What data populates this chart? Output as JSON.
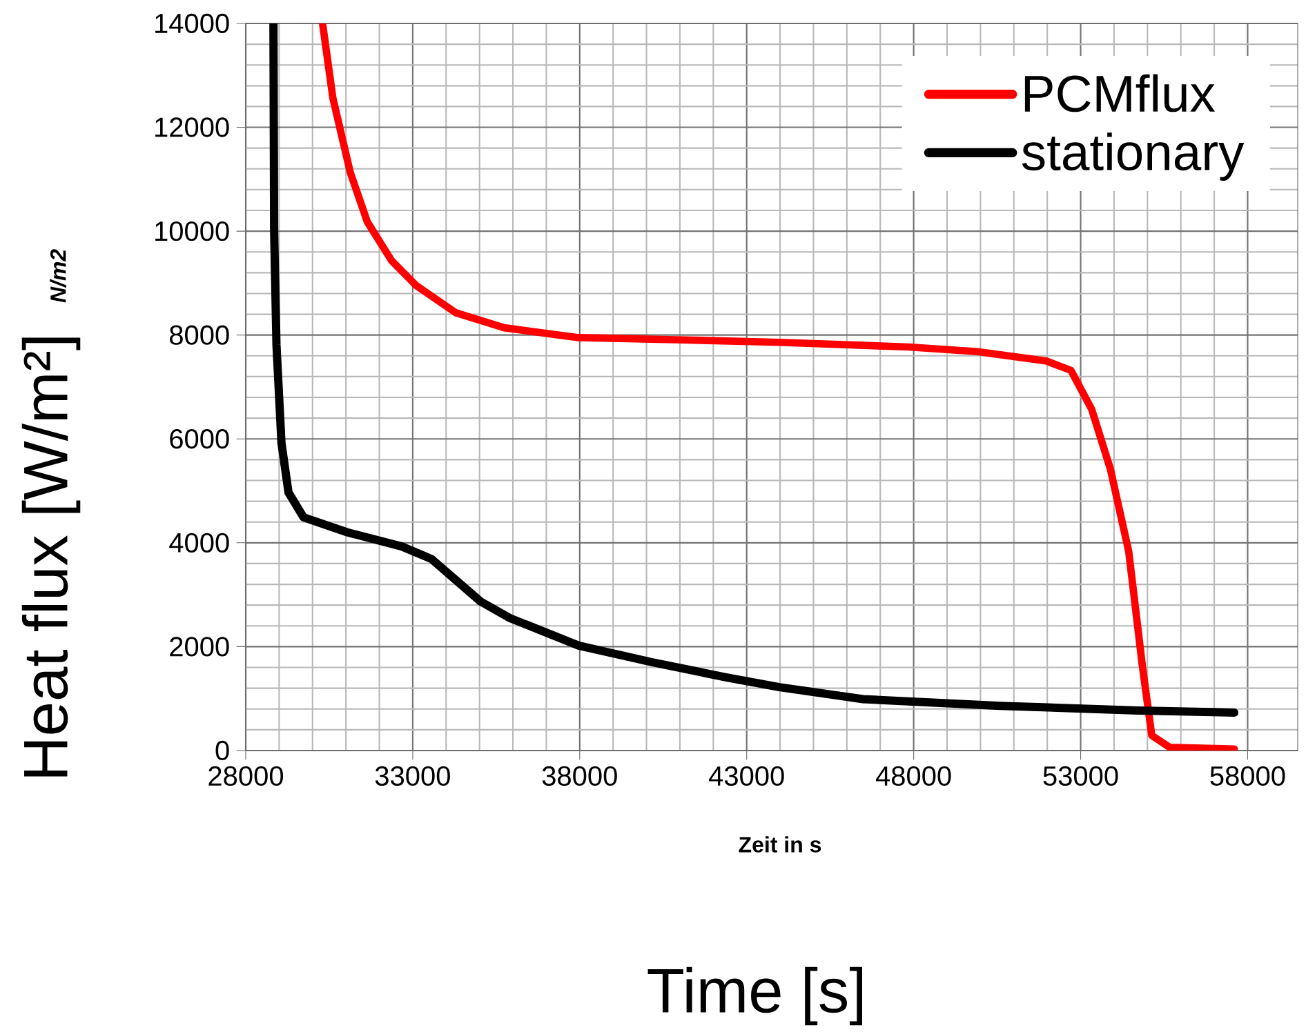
{
  "chart_data": {
    "type": "line",
    "xlabel": "Time [s]",
    "ylabel": "Heat flux  [W/m²]",
    "annotations": [
      "N/m2",
      "Zeit in s"
    ],
    "xlim": [
      28000,
      59500
    ],
    "ylim": [
      0,
      14000
    ],
    "xticks": [
      28000,
      33000,
      38000,
      43000,
      48000,
      53000,
      58000
    ],
    "yticks": [
      0,
      2000,
      4000,
      6000,
      8000,
      10000,
      12000,
      14000
    ],
    "grid": true,
    "legend": "top right",
    "marker": "none",
    "line_style": "solid",
    "series": [
      {
        "name": "PCMflux",
        "color": "#ff0000",
        "x": [
          30300,
          30610,
          31130,
          31640,
          32370,
          33110,
          34290,
          35740,
          37970,
          40890,
          43980,
          47850,
          49910,
          51970,
          52710,
          53330,
          53890,
          54440,
          54850,
          55130,
          55670,
          57600
        ],
        "values": [
          14000,
          12560,
          11130,
          10180,
          9430,
          8950,
          8430,
          8140,
          7950,
          7910,
          7860,
          7770,
          7680,
          7500,
          7320,
          6570,
          5420,
          3830,
          1620,
          290,
          60,
          30
        ]
      },
      {
        "name": "stationary",
        "color": "#000000",
        "x": [
          28830,
          28850,
          28920,
          29070,
          29280,
          29730,
          31050,
          32670,
          33560,
          35030,
          35910,
          37970,
          40170,
          42380,
          43980,
          46480,
          50600,
          54720,
          57600
        ],
        "values": [
          14000,
          10000,
          7810,
          5920,
          4970,
          4490,
          4200,
          3930,
          3690,
          2870,
          2550,
          2020,
          1700,
          1410,
          1220,
          990,
          860,
          770,
          730
        ]
      }
    ]
  }
}
